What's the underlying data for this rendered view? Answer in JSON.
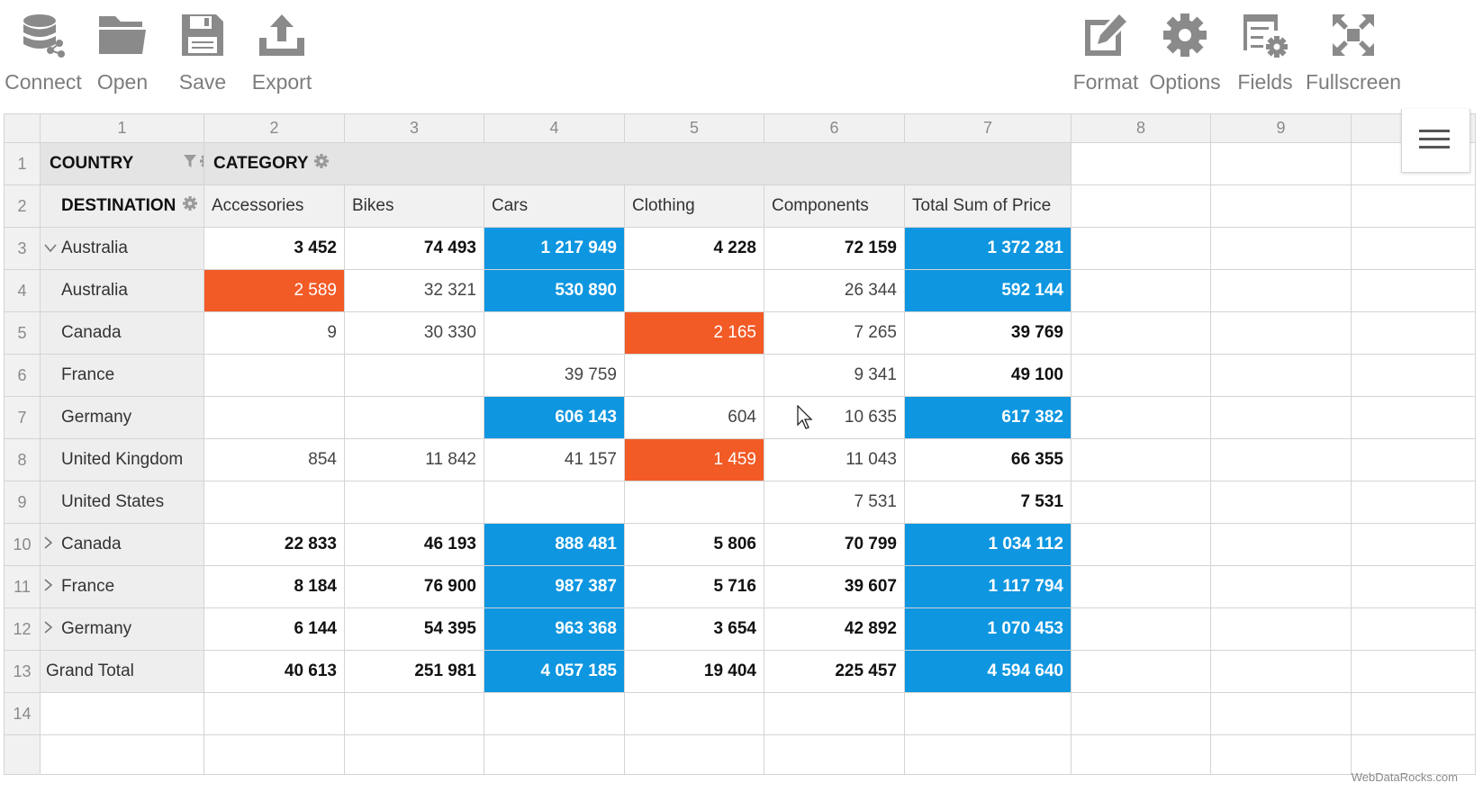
{
  "toolbar": {
    "left": [
      {
        "label": "Connect",
        "icon": "database-connect-icon"
      },
      {
        "label": "Open",
        "icon": "folder-open-icon"
      },
      {
        "label": "Save",
        "icon": "floppy-disk-icon"
      },
      {
        "label": "Export",
        "icon": "export-upload-icon"
      }
    ],
    "right": [
      {
        "label": "Format",
        "icon": "format-edit-icon"
      },
      {
        "label": "Options",
        "icon": "gear-icon"
      },
      {
        "label": "Fields",
        "icon": "fields-settings-icon"
      },
      {
        "label": "Fullscreen",
        "icon": "fullscreen-icon"
      }
    ]
  },
  "grid": {
    "column_numbers": [
      "1",
      "2",
      "3",
      "4",
      "5",
      "6",
      "7",
      "8",
      "9"
    ],
    "row_numbers": [
      "1",
      "2",
      "3",
      "4",
      "5",
      "6",
      "7",
      "8",
      "9",
      "10",
      "11",
      "12",
      "13",
      "14"
    ],
    "country_header": "COUNTRY",
    "category_header": "CATEGORY",
    "destination_header": "DESTINATION",
    "categories": [
      "Accessories",
      "Bikes",
      "Cars",
      "Clothing",
      "Components",
      "Total Sum of Price"
    ],
    "rows": [
      {
        "label": "Australia",
        "level": "parent",
        "expander": "expanded",
        "values": [
          "3 452",
          "74 493",
          "1 217 949",
          "4 228",
          "72 159",
          "1 372 281"
        ]
      },
      {
        "label": "Australia",
        "level": "child",
        "values": [
          "2 589",
          "32 321",
          "530 890",
          "",
          "26 344",
          "592 144"
        ]
      },
      {
        "label": "Canada",
        "level": "child",
        "values": [
          "9",
          "30 330",
          "",
          "2 165",
          "7 265",
          "39 769"
        ]
      },
      {
        "label": "France",
        "level": "child",
        "values": [
          "",
          "",
          "39 759",
          "",
          "9 341",
          "49 100"
        ]
      },
      {
        "label": "Germany",
        "level": "child",
        "values": [
          "",
          "",
          "606 143",
          "604",
          "10 635",
          "617 382"
        ]
      },
      {
        "label": "United Kingdom",
        "level": "child",
        "values": [
          "854",
          "11 842",
          "41 157",
          "1 459",
          "11 043",
          "66 355"
        ]
      },
      {
        "label": "United States",
        "level": "child",
        "values": [
          "",
          "",
          "",
          "",
          "7 531",
          "7 531"
        ]
      },
      {
        "label": "Canada",
        "level": "parent",
        "expander": "collapsed",
        "values": [
          "22 833",
          "46 193",
          "888 481",
          "5 806",
          "70 799",
          "1 034 112"
        ]
      },
      {
        "label": "France",
        "level": "parent",
        "expander": "collapsed",
        "values": [
          "8 184",
          "76 900",
          "987 387",
          "5 716",
          "39 607",
          "1 117 794"
        ]
      },
      {
        "label": "Germany",
        "level": "parent",
        "expander": "collapsed",
        "values": [
          "6 144",
          "54 395",
          "963 368",
          "3 654",
          "42 892",
          "1 070 453"
        ]
      },
      {
        "label": "Grand Total",
        "level": "total",
        "values": [
          "40 613",
          "251 981",
          "4 057 185",
          "19 404",
          "225 457",
          "4 594 640"
        ]
      }
    ],
    "highlight_colors": {
      "blue": "#0e96e0",
      "orange": "#f25a26"
    },
    "highlighted_blue": [
      [
        0,
        2
      ],
      [
        0,
        5
      ],
      [
        1,
        2
      ],
      [
        1,
        5
      ],
      [
        4,
        2
      ],
      [
        4,
        5
      ],
      [
        7,
        2
      ],
      [
        7,
        5
      ],
      [
        8,
        2
      ],
      [
        8,
        5
      ],
      [
        9,
        2
      ],
      [
        9,
        5
      ],
      [
        10,
        2
      ],
      [
        10,
        5
      ]
    ],
    "highlighted_orange": [
      [
        1,
        0
      ],
      [
        2,
        3
      ],
      [
        5,
        3
      ]
    ]
  },
  "credit": "WebDataRocks.com"
}
